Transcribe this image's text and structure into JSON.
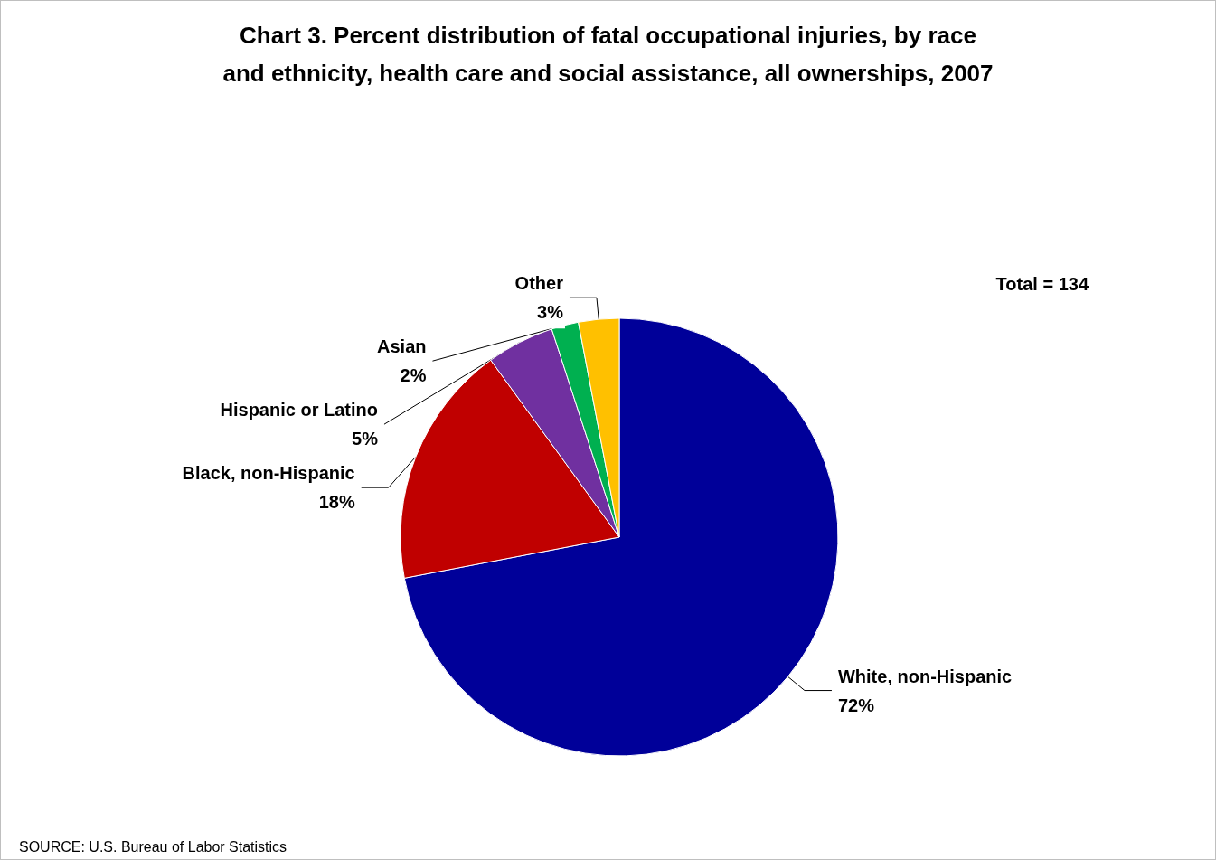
{
  "chart_data": {
    "type": "pie",
    "title": "Chart 3. Percent distribution of fatal occupational injuries, by race\nand ethnicity, health care and social assistance, all ownerships, 2007",
    "categories": [
      "White, non-Hispanic",
      "Black, non-Hispanic",
      "Hispanic or Latino",
      "Asian",
      "Other"
    ],
    "values": [
      72,
      18,
      5,
      2,
      3
    ],
    "value_labels": [
      "72%",
      "18%",
      "5%",
      "2%",
      "3%"
    ],
    "colors": [
      "#000099",
      "#c00000",
      "#7030a0",
      "#00b050",
      "#ffc000"
    ],
    "annotations": [
      "Total = 134",
      "SOURCE: U.S. Bureau of Labor Statistics"
    ],
    "legend": false
  }
}
